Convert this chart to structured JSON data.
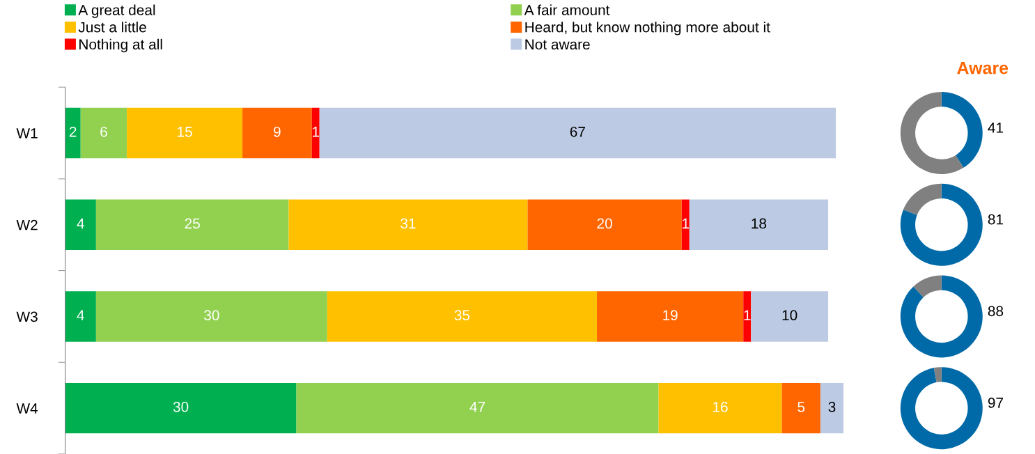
{
  "chart_data": [
    {
      "type": "bar",
      "orientation": "horizontal",
      "stacked": true,
      "legend": "top",
      "data_labels": true,
      "grid": false,
      "categories": [
        "W1",
        "W2",
        "W3",
        "W4"
      ],
      "series": [
        {
          "name": "A great deal",
          "color": "#00b050",
          "values": [
            2,
            4,
            4,
            30
          ]
        },
        {
          "name": "A fair amount",
          "color": "#92d050",
          "values": [
            6,
            25,
            30,
            47
          ]
        },
        {
          "name": "Just a little",
          "color": "#ffc000",
          "values": [
            15,
            31,
            35,
            16
          ]
        },
        {
          "name": "Heard, but know nothing more about it",
          "color": "#ff6600",
          "values": [
            9,
            20,
            19,
            5
          ]
        },
        {
          "name": "Nothing at all",
          "color": "#ff0000",
          "values": [
            1,
            1,
            1,
            null
          ]
        },
        {
          "name": "Not aware",
          "color": "#bccbe3",
          "values": [
            67,
            18,
            10,
            3
          ]
        }
      ]
    },
    {
      "type": "donut",
      "title": "Aware",
      "categories": [
        null,
        null
      ],
      "values": [
        41,
        59
      ],
      "colors": [
        "#006aa8",
        "#808080"
      ],
      "value_labels": [
        "41",
        null
      ]
    },
    {
      "type": "donut",
      "categories": [
        null,
        null
      ],
      "values": [
        81,
        19
      ],
      "colors": [
        "#006aa8",
        "#808080"
      ],
      "value_labels": [
        "81",
        null
      ]
    },
    {
      "type": "donut",
      "categories": [
        null,
        null
      ],
      "values": [
        88,
        12
      ],
      "colors": [
        "#006aa8",
        "#808080"
      ],
      "value_labels": [
        "88",
        null
      ]
    },
    {
      "type": "donut",
      "categories": [
        null,
        null
      ],
      "values": [
        97,
        3
      ],
      "colors": [
        "#006aa8",
        "#808080"
      ],
      "value_labels": [
        "97",
        null
      ]
    }
  ]
}
